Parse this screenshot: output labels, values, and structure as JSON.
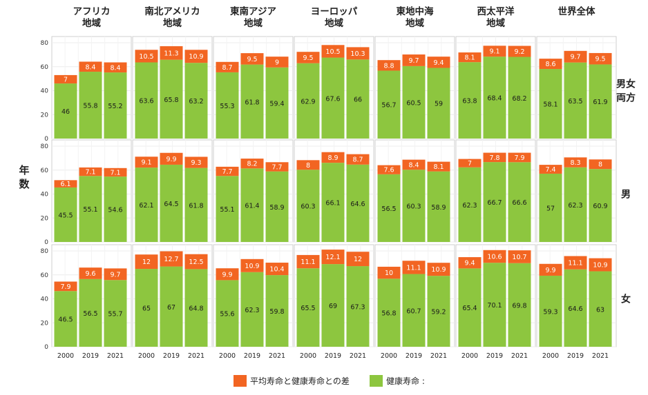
{
  "chart_data": {
    "type": "bar",
    "stacked": true,
    "facets": {
      "columns": [
        "アフリカ\n地域",
        "南北アメリカ\n地域",
        "東南アジア\n地域",
        "ヨーロッパ\n地域",
        "東地中海\n地域",
        "西太平洋\n地域",
        "世界全体"
      ],
      "rows": [
        "男女\n両方",
        "男",
        "女"
      ]
    },
    "categories": [
      "2000",
      "2019",
      "2021"
    ],
    "ylabel": "年\n数",
    "ylim": [
      0,
      80
    ],
    "yticks": [
      0,
      20,
      40,
      60,
      80
    ],
    "grid": true,
    "legend_position": "bottom",
    "series": [
      {
        "name": "平均寿命と健康寿命との差",
        "color": "#f26522"
      },
      {
        "name": "健康寿命 :",
        "color": "#8dc63f"
      }
    ],
    "data": [
      [
        {
          "hale": [
            46,
            55.8,
            55.2
          ],
          "gap": [
            7,
            8.4,
            8.4
          ]
        },
        {
          "hale": [
            63.6,
            65.8,
            63.2
          ],
          "gap": [
            10.5,
            11.3,
            10.9
          ]
        },
        {
          "hale": [
            55.3,
            61.8,
            59.4
          ],
          "gap": [
            8.7,
            9.5,
            9
          ]
        },
        {
          "hale": [
            62.9,
            67.6,
            66
          ],
          "gap": [
            9.5,
            10.5,
            10.3
          ]
        },
        {
          "hale": [
            56.7,
            60.5,
            59
          ],
          "gap": [
            8.8,
            9.7,
            9.4
          ]
        },
        {
          "hale": [
            63.8,
            68.4,
            68.2
          ],
          "gap": [
            8.1,
            9.1,
            9.2
          ]
        },
        {
          "hale": [
            58.1,
            63.5,
            61.9
          ],
          "gap": [
            8.6,
            9.7,
            9.5
          ]
        }
      ],
      [
        {
          "hale": [
            45.5,
            55.1,
            54.6
          ],
          "gap": [
            6.1,
            7.1,
            7.1
          ]
        },
        {
          "hale": [
            62.1,
            64.5,
            61.8
          ],
          "gap": [
            9.1,
            9.9,
            9.3
          ]
        },
        {
          "hale": [
            55.1,
            61.4,
            58.9
          ],
          "gap": [
            7.7,
            8.2,
            7.7
          ]
        },
        {
          "hale": [
            60.3,
            66.1,
            64.6
          ],
          "gap": [
            8,
            8.9,
            8.7
          ]
        },
        {
          "hale": [
            56.5,
            60.3,
            58.9
          ],
          "gap": [
            7.6,
            8.4,
            8.1
          ]
        },
        {
          "hale": [
            62.3,
            66.7,
            66.6
          ],
          "gap": [
            7,
            7.8,
            7.9
          ]
        },
        {
          "hale": [
            57,
            62.3,
            60.9
          ],
          "gap": [
            7.4,
            8.3,
            8
          ]
        }
      ],
      [
        {
          "hale": [
            46.5,
            56.5,
            55.7
          ],
          "gap": [
            7.9,
            9.6,
            9.7
          ]
        },
        {
          "hale": [
            65,
            67,
            64.8
          ],
          "gap": [
            12,
            12.7,
            12.5
          ]
        },
        {
          "hale": [
            55.6,
            62.3,
            59.8
          ],
          "gap": [
            9.9,
            10.9,
            10.4
          ]
        },
        {
          "hale": [
            65.5,
            69,
            67.3
          ],
          "gap": [
            11.1,
            12.1,
            12
          ]
        },
        {
          "hale": [
            56.8,
            60.7,
            59.2
          ],
          "gap": [
            10,
            11.1,
            10.9
          ]
        },
        {
          "hale": [
            65.4,
            70.1,
            69.8
          ],
          "gap": [
            9.4,
            10.6,
            10.7
          ]
        },
        {
          "hale": [
            59.3,
            64.6,
            63
          ],
          "gap": [
            9.9,
            11.1,
            10.9
          ]
        }
      ]
    ]
  }
}
